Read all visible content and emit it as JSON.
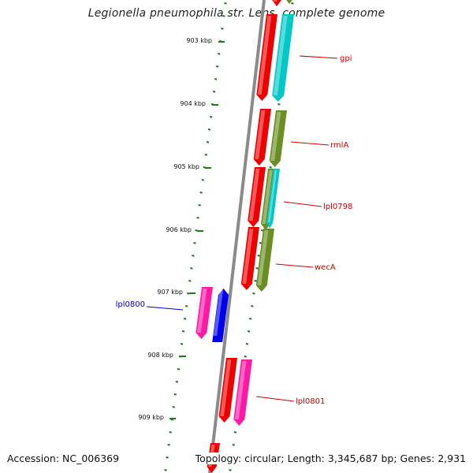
{
  "title": "Legionella pneumophila str. Lens, complete genome",
  "accession": "Accession: NC_006369",
  "genome_info": "Topology: circular; Length: 3,345,687 bp; Genes: 2,931",
  "colors": {
    "backbone": "#8a8a8a",
    "tick": "#1e7a1e",
    "gene_red": "#ee0000",
    "gene_olive": "#6b8e23",
    "gene_cyan": "#00c8c8",
    "gene_magenta": "#ff1aa6",
    "gene_blue": "#0000ee",
    "label_red": "#cc0000",
    "label_blue": "#0000bb"
  },
  "kbp_labels": [
    "903 kbp",
    "904 kbp",
    "905 kbp",
    "906 kbp",
    "907 kbp",
    "908 kbp",
    "909 kbp"
  ],
  "gene_labels": [
    {
      "name": "gpi",
      "color": "red"
    },
    {
      "name": "rmlA",
      "color": "red"
    },
    {
      "name": "lpl0798",
      "color": "red"
    },
    {
      "name": "wecA",
      "color": "red"
    },
    {
      "name": "lpl0800",
      "color": "blue"
    },
    {
      "name": "lpl0801",
      "color": "red"
    }
  ]
}
